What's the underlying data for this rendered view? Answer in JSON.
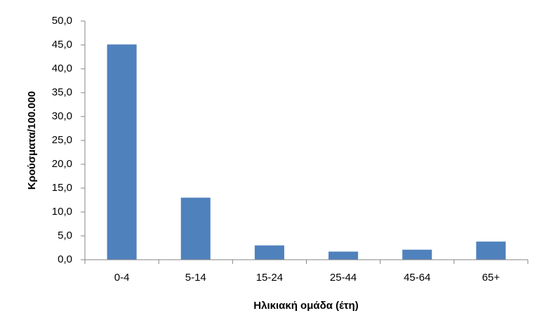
{
  "chart_data": {
    "type": "bar",
    "x_label": "Ηλικιακή ομάδα (έτη)",
    "y_label": "Κρούσματα/100.000",
    "categories": [
      "0-4",
      "5-14",
      "15-24",
      "25-44",
      "45-64",
      "65+"
    ],
    "values": [
      45.1,
      13.0,
      3.0,
      1.7,
      2.1,
      3.8
    ],
    "color": "#4f81bd",
    "ylim": [
      0,
      50
    ],
    "yticks": [
      {
        "value": 0,
        "label": "0,0"
      },
      {
        "value": 5,
        "label": "5,0"
      },
      {
        "value": 10,
        "label": "10,0"
      },
      {
        "value": 15,
        "label": "15,0"
      },
      {
        "value": 20,
        "label": "20,0"
      },
      {
        "value": 25,
        "label": "25,0"
      },
      {
        "value": 30,
        "label": "30,0"
      },
      {
        "value": 35,
        "label": "35,0"
      },
      {
        "value": 40,
        "label": "40,0"
      },
      {
        "value": 45,
        "label": "45,0"
      },
      {
        "value": 50,
        "label": "50,0"
      }
    ],
    "grid": false
  }
}
